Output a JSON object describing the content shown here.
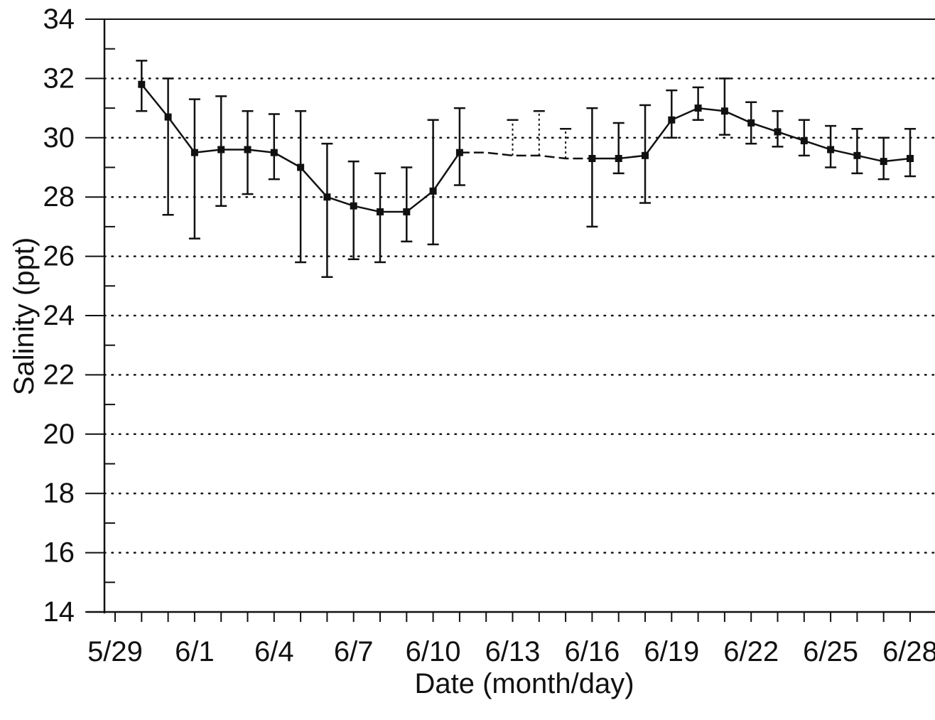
{
  "chart_data": {
    "type": "line",
    "title": "",
    "xlabel": "Date (month/day)",
    "ylabel": "Salinity (ppt)",
    "ylim": [
      14,
      34
    ],
    "yticks": [
      14,
      16,
      18,
      20,
      22,
      24,
      26,
      28,
      30,
      32,
      34
    ],
    "xlim": [
      "5/29",
      "6/29"
    ],
    "xticks": [
      "5/29",
      "6/1",
      "6/4",
      "6/7",
      "6/10",
      "6/13",
      "6/16",
      "6/19",
      "6/22",
      "6/25",
      "6/28"
    ],
    "grid": "horizontal dotted",
    "series": [
      {
        "style": "solid line with square markers and error bars",
        "x": [
          "5/30",
          "5/31",
          "6/1",
          "6/2",
          "6/3",
          "6/4",
          "6/5",
          "6/6",
          "6/7",
          "6/8",
          "6/9",
          "6/10",
          "6/11"
        ],
        "y": [
          31.8,
          30.7,
          29.5,
          29.6,
          29.6,
          29.5,
          29.0,
          28.0,
          27.7,
          27.5,
          27.5,
          28.2,
          29.5
        ],
        "err_low": [
          30.9,
          27.4,
          26.6,
          27.7,
          28.1,
          28.6,
          25.8,
          25.3,
          25.9,
          25.8,
          26.5,
          26.4,
          28.4
        ],
        "err_high": [
          32.6,
          32.0,
          31.3,
          31.4,
          30.9,
          30.8,
          30.9,
          29.8,
          29.2,
          28.8,
          29.0,
          30.6,
          31.0
        ]
      },
      {
        "style": "dashed line (no measurements) with dotted error bars",
        "x": [
          "6/11",
          "6/12",
          "6/13",
          "6/14",
          "6/15",
          "6/16"
        ],
        "y": [
          29.5,
          29.5,
          29.4,
          29.4,
          29.3,
          29.3
        ],
        "err_low": [
          null,
          null,
          29.4,
          29.4,
          29.3,
          null
        ],
        "err_high": [
          null,
          null,
          30.6,
          30.9,
          30.3,
          null
        ]
      },
      {
        "style": "solid line with square markers and error bars",
        "x": [
          "6/16",
          "6/17",
          "6/18",
          "6/19",
          "6/20",
          "6/21",
          "6/22",
          "6/23",
          "6/24",
          "6/25",
          "6/26",
          "6/27",
          "6/28"
        ],
        "y": [
          29.3,
          29.3,
          29.4,
          30.6,
          31.0,
          30.9,
          30.5,
          30.2,
          29.9,
          29.6,
          29.4,
          29.2,
          29.3
        ],
        "err_low": [
          27.0,
          28.8,
          27.8,
          30.0,
          30.6,
          30.1,
          29.8,
          29.7,
          29.4,
          29.0,
          28.8,
          28.6,
          28.7
        ],
        "err_high": [
          31.0,
          30.5,
          31.1,
          31.6,
          31.7,
          32.0,
          31.2,
          30.9,
          30.6,
          30.4,
          30.3,
          30.0,
          30.3
        ]
      }
    ]
  }
}
